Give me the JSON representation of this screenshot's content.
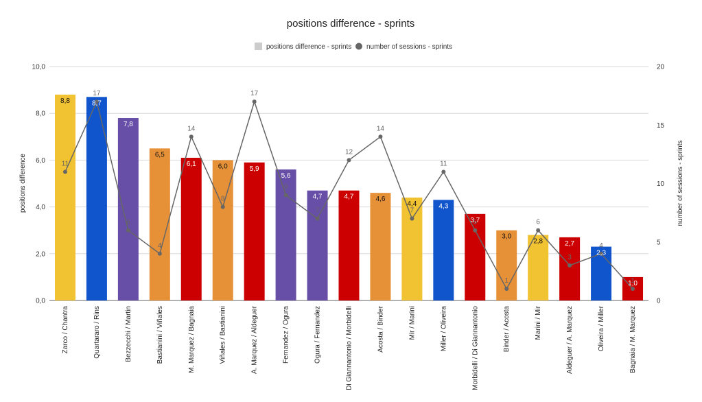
{
  "chart_data": {
    "type": "bar",
    "title": "positions difference - sprints",
    "ylabel": "positions difference",
    "y2label": "number of sessions - sprints",
    "ylim": [
      0,
      10
    ],
    "y2lim": [
      0,
      20
    ],
    "yticks": [
      "0,0",
      "2,0",
      "4,0",
      "6,0",
      "8,0",
      "10,0"
    ],
    "y2ticks": [
      "0",
      "5",
      "10",
      "15",
      "20"
    ],
    "grid": true,
    "legend_position": "top",
    "categories": [
      "Zarco / Chantra",
      "Quartararo / Rins",
      "Bezzecchi / Martin",
      "Bastianini / Viñales",
      "M. Marquez / Bagnaia",
      "Viñales / Bastianini",
      "A. Marquez / Aldeguer",
      "Fernandez / Ogura",
      "Ogura / Fernandez",
      "Di Giannantonio / Morbidelli",
      "Acosta / Binder",
      "Mir / Marini",
      "Miller / Oliveira",
      "Morbidelli / Di Giannantonio",
      "Binder / Acosta",
      "Marini / Mir",
      "Aldeguer / A. Marquez",
      "Oliveira / Miller",
      "Bagnaia / M. Marquez"
    ],
    "series": [
      {
        "name": "positions difference - sprints",
        "kind": "bar",
        "axis": "left",
        "values": [
          8.8,
          8.7,
          7.8,
          6.5,
          6.1,
          6.0,
          5.9,
          5.6,
          4.7,
          4.7,
          4.6,
          4.4,
          4.3,
          3.7,
          3.0,
          2.8,
          2.7,
          2.3,
          1.0
        ],
        "labels": [
          "8,8",
          "8,7",
          "7,8",
          "6,5",
          "6,1",
          "6,0",
          "5,9",
          "5,6",
          "4,7",
          "4,7",
          "4,6",
          "4,4",
          "4,3",
          "3,7",
          "3,0",
          "2,8",
          "2,7",
          "2,3",
          "1,0"
        ],
        "colors": [
          "#f1c232",
          "#1155cc",
          "#674ea7",
          "#e69138",
          "#cc0000",
          "#e69138",
          "#cc0000",
          "#674ea7",
          "#674ea7",
          "#cc0000",
          "#e69138",
          "#f1c232",
          "#1155cc",
          "#cc0000",
          "#e69138",
          "#f1c232",
          "#cc0000",
          "#1155cc",
          "#cc0000"
        ]
      },
      {
        "name": "number of sessions - sprints",
        "kind": "line",
        "axis": "right",
        "color": "#666666",
        "values": [
          11,
          17,
          6,
          4,
          14,
          8,
          17,
          9,
          7,
          12,
          14,
          7,
          11,
          6,
          1,
          6,
          3,
          4,
          1
        ]
      }
    ]
  }
}
